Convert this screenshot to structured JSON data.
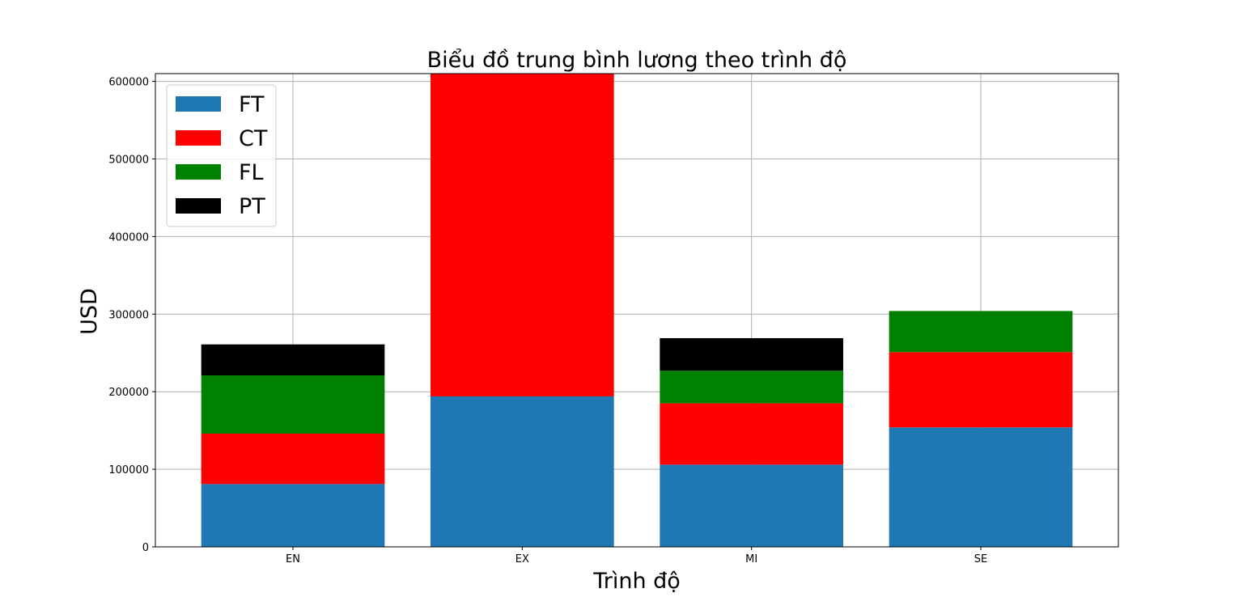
{
  "chart_data": {
    "type": "bar",
    "stacked": true,
    "title": "Biểu đồ trung bình lương theo trình độ",
    "xlabel": "Trình độ",
    "ylabel": "USD",
    "categories": [
      "EN",
      "EX",
      "MI",
      "SE"
    ],
    "ylim": [
      0,
      610000
    ],
    "yticks": [
      0,
      100000,
      200000,
      300000,
      400000,
      500000,
      600000
    ],
    "grid": true,
    "legend_position": "top-left",
    "series": [
      {
        "name": "FT",
        "color": "#1f77b4",
        "values": [
          81000,
          194000,
          106000,
          154000
        ]
      },
      {
        "name": "CT",
        "color": "#ff0000",
        "values": [
          65000,
          416000,
          79000,
          97000
        ]
      },
      {
        "name": "FL",
        "color": "#008000",
        "values": [
          75000,
          0,
          42000,
          53000
        ]
      },
      {
        "name": "PT",
        "color": "#000000",
        "values": [
          40000,
          0,
          42000,
          0
        ]
      }
    ]
  }
}
